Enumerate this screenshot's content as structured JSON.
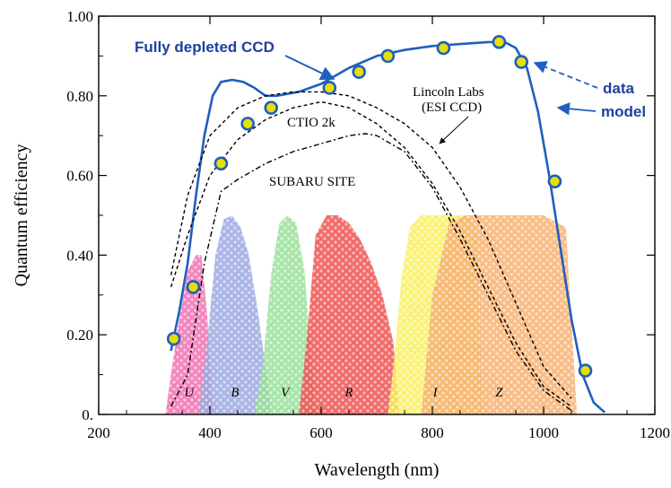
{
  "chart_data": {
    "type": "line",
    "xlabel": "Wavelength (nm)",
    "ylabel": "Quantum efficiency",
    "xlim": [
      200,
      1200
    ],
    "ylim": [
      0,
      1.0
    ],
    "xticks": [
      200,
      400,
      600,
      800,
      1000,
      1200
    ],
    "xtick_labels": [
      "200",
      "400",
      "600",
      "800",
      "1000",
      "1200"
    ],
    "yticks": [
      0,
      0.2,
      0.4,
      0.6,
      0.8,
      1.0
    ],
    "ytick_labels": [
      "0.",
      "0.20",
      "0.40",
      "0.60",
      "0.80",
      "1.00"
    ],
    "series": [
      {
        "name": "Fully depleted CCD",
        "kind": "model",
        "color": "#1f5fbf",
        "x": [
          330,
          345,
          360,
          375,
          390,
          405,
          420,
          440,
          460,
          480,
          500,
          520,
          540,
          560,
          600,
          650,
          700,
          750,
          800,
          850,
          900,
          930,
          950,
          970,
          990,
          1010,
          1030,
          1050,
          1070,
          1090,
          1110
        ],
        "y": [
          0.16,
          0.26,
          0.38,
          0.55,
          0.7,
          0.8,
          0.835,
          0.84,
          0.835,
          0.82,
          0.8,
          0.8,
          0.805,
          0.81,
          0.83,
          0.87,
          0.9,
          0.915,
          0.925,
          0.93,
          0.935,
          0.935,
          0.92,
          0.87,
          0.76,
          0.6,
          0.42,
          0.24,
          0.1,
          0.03,
          0.005
        ]
      },
      {
        "name": "Fully depleted CCD",
        "kind": "data",
        "color": "#1f5fbf",
        "marker_fill": "#e8e000",
        "x": [
          335,
          370,
          420,
          468,
          510,
          615,
          668,
          720,
          820,
          920,
          960,
          1020,
          1075
        ],
        "y": [
          0.19,
          0.32,
          0.63,
          0.73,
          0.77,
          0.82,
          0.86,
          0.9,
          0.92,
          0.935,
          0.885,
          0.585,
          0.11
        ]
      },
      {
        "name": "Lincoln Labs (ESI CCD)",
        "kind": "model",
        "color": "#000000",
        "x": [
          330,
          360,
          400,
          450,
          500,
          550,
          600,
          650,
          700,
          750,
          800,
          850,
          900,
          950,
          1000,
          1050
        ],
        "y": [
          0.35,
          0.55,
          0.7,
          0.77,
          0.8,
          0.81,
          0.81,
          0.8,
          0.77,
          0.73,
          0.67,
          0.57,
          0.44,
          0.28,
          0.12,
          0.04
        ]
      },
      {
        "name": "CTIO 2k",
        "kind": "model",
        "color": "#000000",
        "x": [
          330,
          360,
          400,
          450,
          500,
          550,
          600,
          650,
          700,
          750,
          800,
          850,
          900,
          950,
          1000,
          1050
        ],
        "y": [
          0.32,
          0.45,
          0.6,
          0.69,
          0.74,
          0.77,
          0.785,
          0.77,
          0.73,
          0.67,
          0.58,
          0.46,
          0.32,
          0.18,
          0.07,
          0.02
        ]
      },
      {
        "name": "SUBARU SITE",
        "kind": "model",
        "color": "#000000",
        "x": [
          330,
          360,
          390,
          420,
          450,
          500,
          550,
          600,
          650,
          680,
          700,
          750,
          800,
          850,
          900,
          950,
          1000,
          1050
        ],
        "y": [
          0.02,
          0.1,
          0.38,
          0.56,
          0.59,
          0.63,
          0.66,
          0.68,
          0.7,
          0.705,
          0.7,
          0.66,
          0.57,
          0.44,
          0.3,
          0.16,
          0.06,
          0.01
        ]
      }
    ],
    "bands": [
      {
        "label": "U",
        "color": "#f070b0",
        "x": [
          320,
          330,
          345,
          360,
          375,
          385,
          395,
          405
        ],
        "y": [
          0,
          0.1,
          0.24,
          0.36,
          0.4,
          0.4,
          0.25,
          0
        ]
      },
      {
        "label": "B",
        "color": "#9aa8e0",
        "x": [
          380,
          395,
          410,
          425,
          440,
          455,
          470,
          485,
          500,
          510
        ],
        "y": [
          0,
          0.18,
          0.4,
          0.49,
          0.5,
          0.47,
          0.4,
          0.27,
          0.12,
          0
        ]
      },
      {
        "label": "V",
        "color": "#98e098",
        "x": [
          480,
          495,
          510,
          525,
          540,
          555,
          570,
          580,
          590
        ],
        "y": [
          0,
          0.12,
          0.35,
          0.48,
          0.5,
          0.48,
          0.36,
          0.18,
          0
        ]
      },
      {
        "label": "R",
        "color": "#f05050",
        "x": [
          560,
          575,
          590,
          610,
          630,
          650,
          670,
          690,
          710,
          730,
          740
        ],
        "y": [
          0,
          0.2,
          0.45,
          0.5,
          0.5,
          0.48,
          0.44,
          0.38,
          0.3,
          0.18,
          0
        ]
      },
      {
        "label": "I",
        "color": "#f8f060",
        "x": [
          720,
          730,
          745,
          760,
          780,
          800,
          820,
          840,
          860,
          880,
          890
        ],
        "y": [
          0,
          0.12,
          0.35,
          0.47,
          0.5,
          0.5,
          0.5,
          0.5,
          0.5,
          0.46,
          0
        ]
      },
      {
        "label": "Z",
        "color": "#f8b070",
        "x": [
          780,
          800,
          830,
          860,
          900,
          950,
          1000,
          1040,
          1060
        ],
        "y": [
          0,
          0.3,
          0.48,
          0.5,
          0.5,
          0.5,
          0.5,
          0.47,
          0
        ]
      }
    ],
    "annotations": [
      {
        "name": "label-fully-depleted-ccd",
        "text": "Fully depleted CCD",
        "style": "blue"
      },
      {
        "name": "label-lincoln-labs",
        "text": "Lincoln Labs",
        "style": "black"
      },
      {
        "name": "label-esi-ccd",
        "text": "(ESI CCD)",
        "style": "black"
      },
      {
        "name": "label-ctio",
        "text": "CTIO 2k",
        "style": "black"
      },
      {
        "name": "label-subaru",
        "text": "SUBARU SITE",
        "style": "black"
      },
      {
        "name": "label-data",
        "text": "data",
        "style": "blue"
      },
      {
        "name": "label-model",
        "text": "model",
        "style": "blue"
      }
    ],
    "grid": false
  }
}
